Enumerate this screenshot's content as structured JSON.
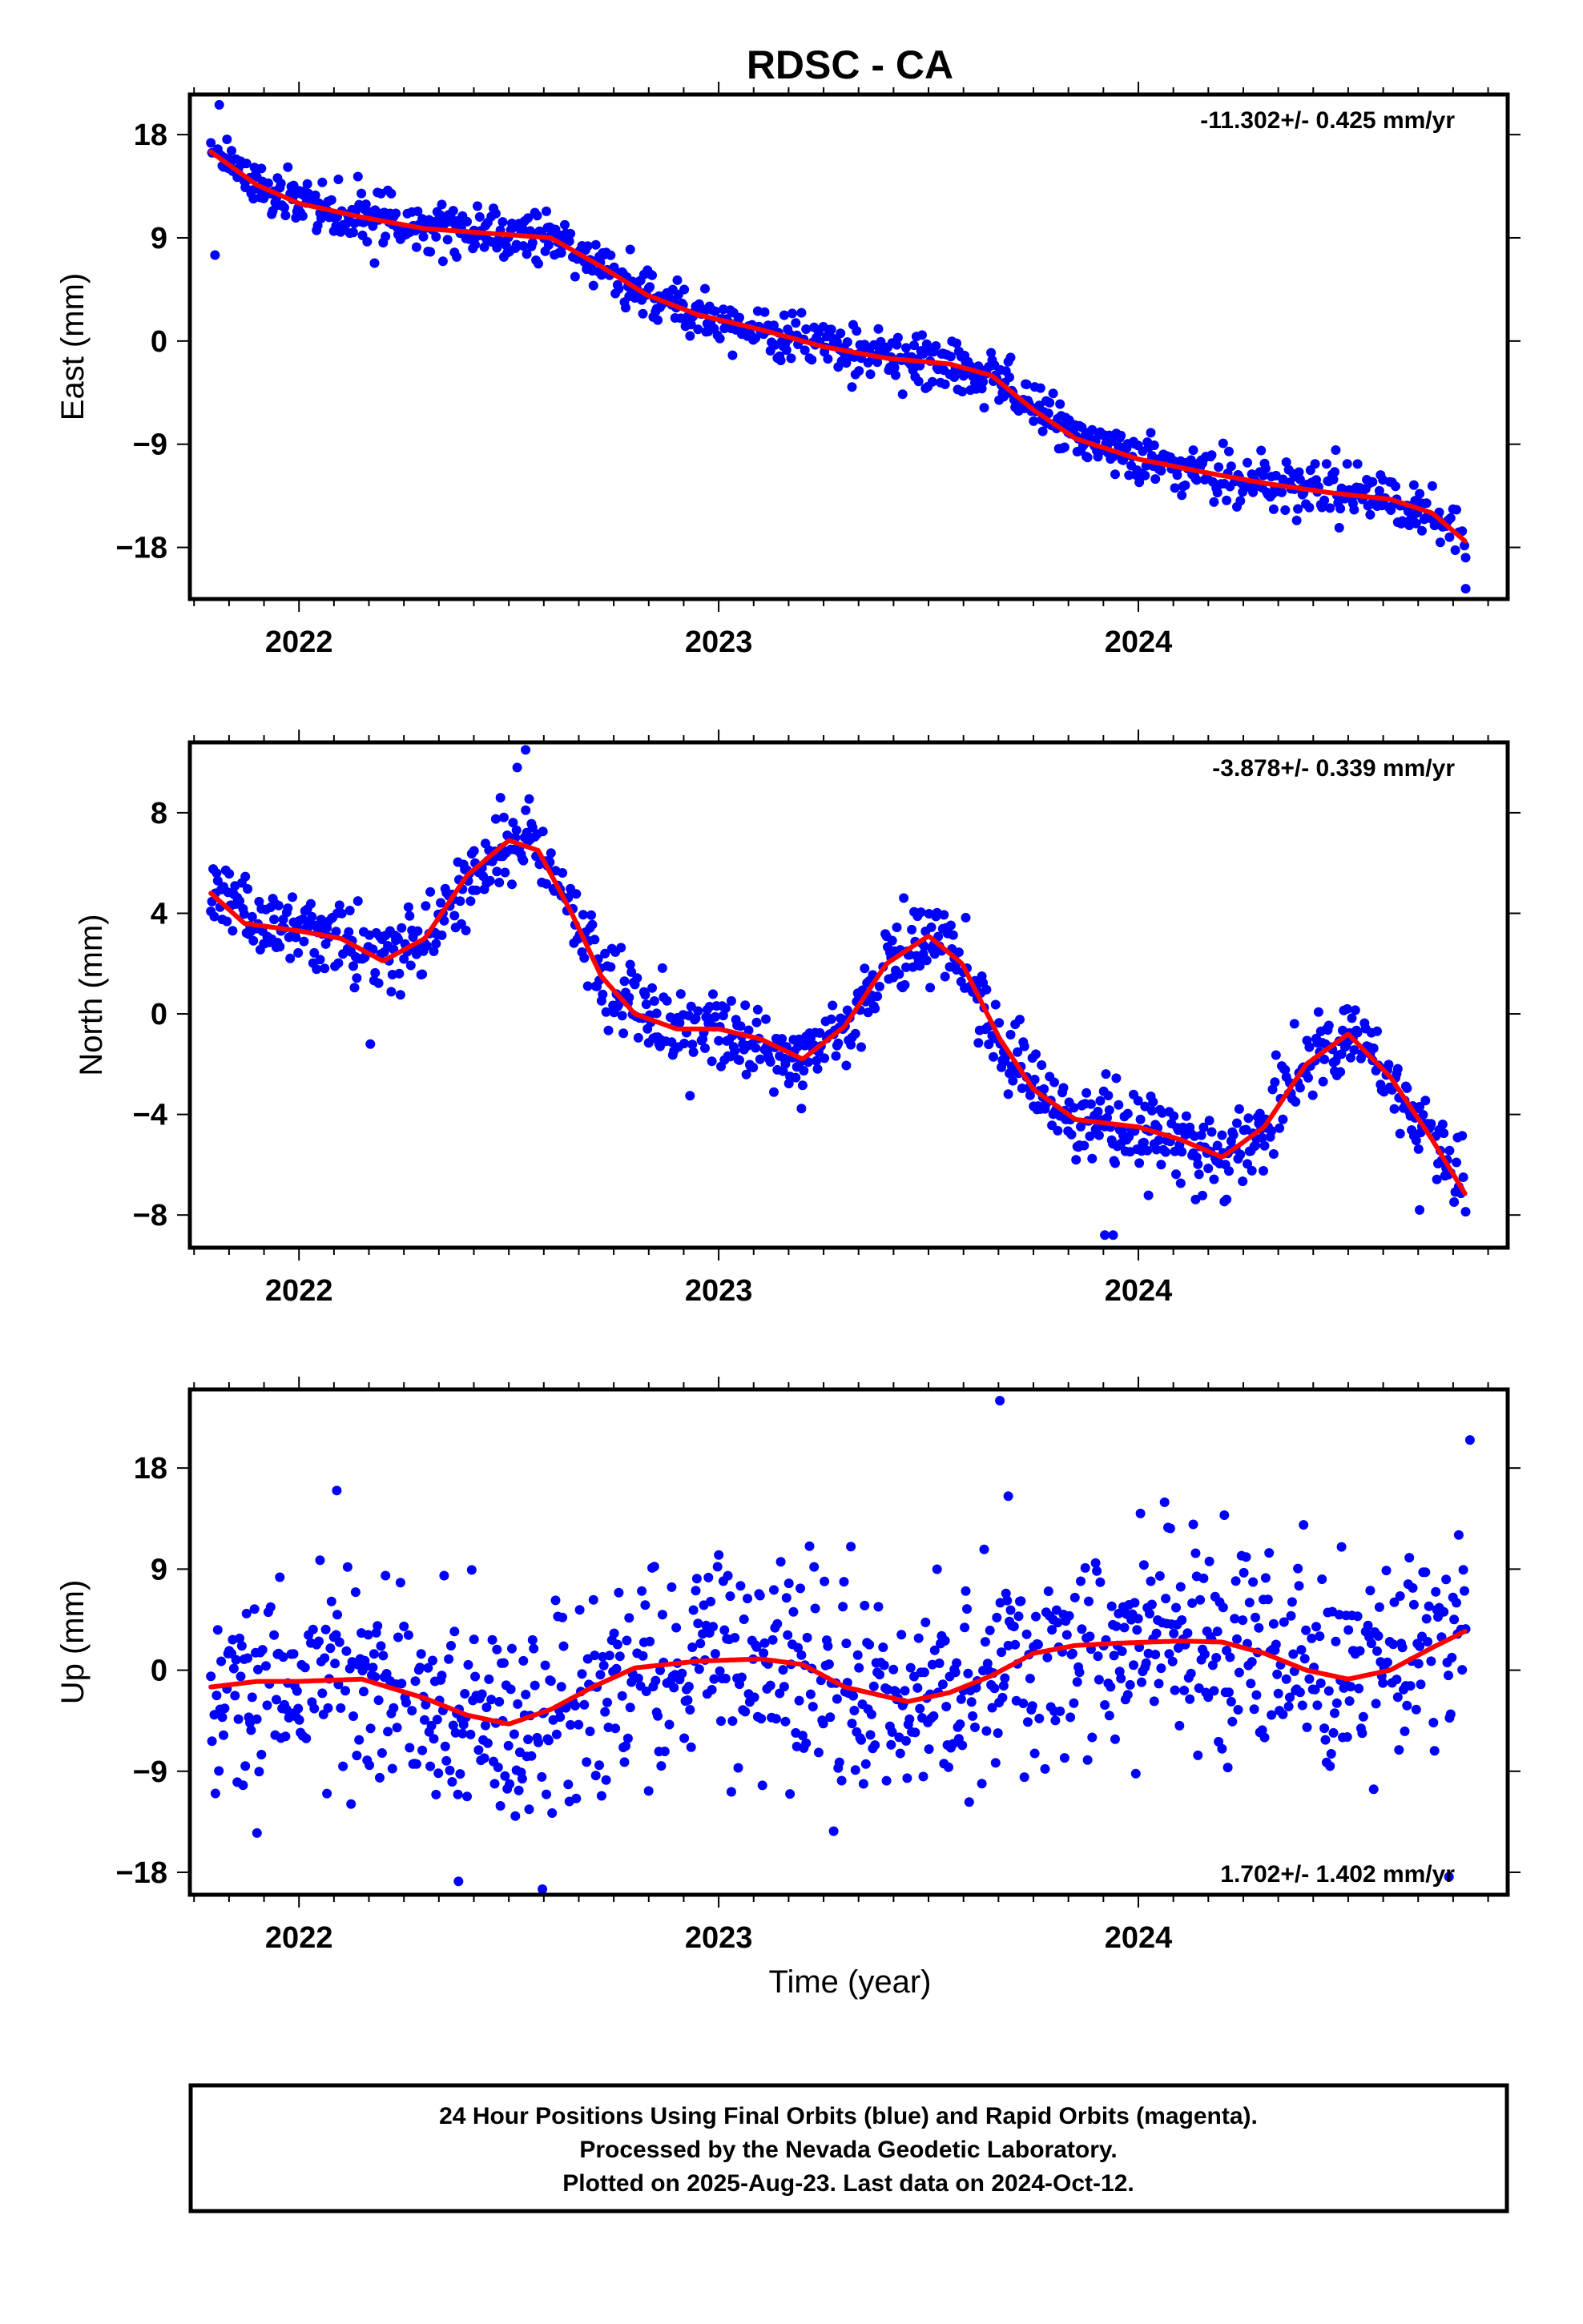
{
  "title": "RDSC - CA",
  "xlabel": "Time (year)",
  "colors": {
    "final": "#0000ff",
    "model": "#ff0000",
    "frame": "#000000"
  },
  "footer": {
    "lines": [
      "24 Hour Positions Using Final Orbits (blue) and Rapid Orbits (magenta).",
      "Processed by the Nevada Geodetic Laboratory.",
      "Plotted on 2025-Aug-23. Last data on 2024-Oct-12."
    ]
  },
  "chart_data": [
    {
      "type": "scatter",
      "ylabel": "East (mm)",
      "rate_label": "-11.302+/- 0.425 mm/yr",
      "rate_position": "top-right",
      "xlim": [
        2021.74,
        2024.88
      ],
      "ylim": [
        -22.5,
        21.5
      ],
      "xticks": [
        2022,
        2023,
        2024
      ],
      "yticks": [
        18,
        9,
        0,
        -9,
        -18
      ],
      "ytick_labels": [
        "18",
        "9",
        "0",
        "−9",
        "−18"
      ],
      "x_start": 2021.79,
      "x_end": 2024.78,
      "model": [
        [
          2021.79,
          16.5
        ],
        [
          2021.9,
          13.6
        ],
        [
          2022.0,
          12.0
        ],
        [
          2022.15,
          10.8
        ],
        [
          2022.3,
          9.8
        ],
        [
          2022.45,
          9.4
        ],
        [
          2022.6,
          9.0
        ],
        [
          2022.72,
          6.5
        ],
        [
          2022.83,
          4.0
        ],
        [
          2022.95,
          2.3
        ],
        [
          2023.1,
          1.0
        ],
        [
          2023.25,
          -0.5
        ],
        [
          2023.4,
          -1.5
        ],
        [
          2023.55,
          -2.0
        ],
        [
          2023.65,
          -3.0
        ],
        [
          2023.75,
          -6.0
        ],
        [
          2023.85,
          -8.5
        ],
        [
          2024.0,
          -10.3
        ],
        [
          2024.15,
          -11.4
        ],
        [
          2024.3,
          -12.4
        ],
        [
          2024.45,
          -13.2
        ],
        [
          2024.6,
          -13.8
        ],
        [
          2024.7,
          -15.0
        ],
        [
          2024.78,
          -17.5
        ]
      ],
      "scatter_sd": 1.1,
      "outliers": [
        [
          2021.81,
          20.6
        ],
        [
          2021.8,
          7.5
        ],
        [
          2022.18,
          6.8
        ],
        [
          2024.78,
          -21.6
        ]
      ]
    },
    {
      "type": "scatter",
      "ylabel": "North (mm)",
      "rate_label": "-3.878+/- 0.339 mm/yr",
      "rate_position": "top-right",
      "xlim": [
        2021.74,
        2024.88
      ],
      "ylim": [
        -9.3,
        10.8
      ],
      "xticks": [
        2022,
        2023,
        2024
      ],
      "yticks": [
        8,
        4,
        0,
        -4,
        -8
      ],
      "ytick_labels": [
        "8",
        "4",
        "0",
        "−4",
        "−8"
      ],
      "x_start": 2021.79,
      "x_end": 2024.78,
      "model": [
        [
          2021.79,
          4.8
        ],
        [
          2021.87,
          3.6
        ],
        [
          2022.0,
          3.3
        ],
        [
          2022.1,
          3.0
        ],
        [
          2022.2,
          2.1
        ],
        [
          2022.3,
          3.0
        ],
        [
          2022.4,
          5.5
        ],
        [
          2022.5,
          6.9
        ],
        [
          2022.57,
          6.5
        ],
        [
          2022.65,
          4.0
        ],
        [
          2022.72,
          1.5
        ],
        [
          2022.8,
          0.0
        ],
        [
          2022.9,
          -0.6
        ],
        [
          2023.0,
          -0.6
        ],
        [
          2023.1,
          -1.0
        ],
        [
          2023.2,
          -1.8
        ],
        [
          2023.3,
          -0.5
        ],
        [
          2023.4,
          2.0
        ],
        [
          2023.5,
          3.1
        ],
        [
          2023.58,
          2.0
        ],
        [
          2023.67,
          -1.0
        ],
        [
          2023.75,
          -3.0
        ],
        [
          2023.85,
          -4.2
        ],
        [
          2024.0,
          -4.5
        ],
        [
          2024.1,
          -5.0
        ],
        [
          2024.2,
          -5.7
        ],
        [
          2024.3,
          -4.5
        ],
        [
          2024.4,
          -2.0
        ],
        [
          2024.5,
          -0.8
        ],
        [
          2024.6,
          -2.5
        ],
        [
          2024.7,
          -5.0
        ],
        [
          2024.78,
          -7.2
        ]
      ],
      "scatter_sd": 0.8,
      "outliers": [
        [
          2022.54,
          10.5
        ],
        [
          2022.52,
          9.8
        ],
        [
          2023.92,
          -8.8
        ],
        [
          2023.94,
          -8.8
        ],
        [
          2024.67,
          -7.8
        ],
        [
          2022.17,
          -1.2
        ],
        [
          2022.48,
          8.6
        ]
      ]
    },
    {
      "type": "scatter",
      "ylabel": "Up (mm)",
      "rate_label": "1.702+/- 1.402 mm/yr",
      "rate_position": "bottom-right",
      "xlim": [
        2021.74,
        2024.88
      ],
      "ylim": [
        -20.0,
        25.0
      ],
      "xticks": [
        2022,
        2023,
        2024
      ],
      "yticks": [
        18,
        9,
        0,
        -9,
        -18
      ],
      "ytick_labels": [
        "18",
        "9",
        "0",
        "−9",
        "−18"
      ],
      "x_start": 2021.79,
      "x_end": 2024.78,
      "model": [
        [
          2021.79,
          -1.5
        ],
        [
          2021.9,
          -1.0
        ],
        [
          2022.0,
          -1.0
        ],
        [
          2022.15,
          -0.8
        ],
        [
          2022.3,
          -2.5
        ],
        [
          2022.4,
          -4.0
        ],
        [
          2022.5,
          -4.8
        ],
        [
          2022.6,
          -3.5
        ],
        [
          2022.7,
          -1.5
        ],
        [
          2022.8,
          0.2
        ],
        [
          2022.95,
          0.8
        ],
        [
          2023.1,
          1.0
        ],
        [
          2023.2,
          0.5
        ],
        [
          2023.3,
          -1.5
        ],
        [
          2023.45,
          -2.8
        ],
        [
          2023.55,
          -2.0
        ],
        [
          2023.65,
          -0.5
        ],
        [
          2023.75,
          1.5
        ],
        [
          2023.85,
          2.2
        ],
        [
          2023.95,
          2.4
        ],
        [
          2024.1,
          2.6
        ],
        [
          2024.2,
          2.5
        ],
        [
          2024.3,
          1.5
        ],
        [
          2024.4,
          0.0
        ],
        [
          2024.5,
          -0.8
        ],
        [
          2024.6,
          0.0
        ],
        [
          2024.7,
          2.0
        ],
        [
          2024.78,
          3.5
        ]
      ],
      "scatter_sd": 4.5,
      "outliers": [
        [
          2023.67,
          24.0
        ],
        [
          2024.79,
          20.5
        ],
        [
          2022.09,
          16.0
        ],
        [
          2022.38,
          -18.8
        ],
        [
          2022.58,
          -19.5
        ],
        [
          2024.74,
          -18.4
        ],
        [
          2021.9,
          -14.5
        ],
        [
          2023.69,
          15.5
        ]
      ]
    }
  ]
}
